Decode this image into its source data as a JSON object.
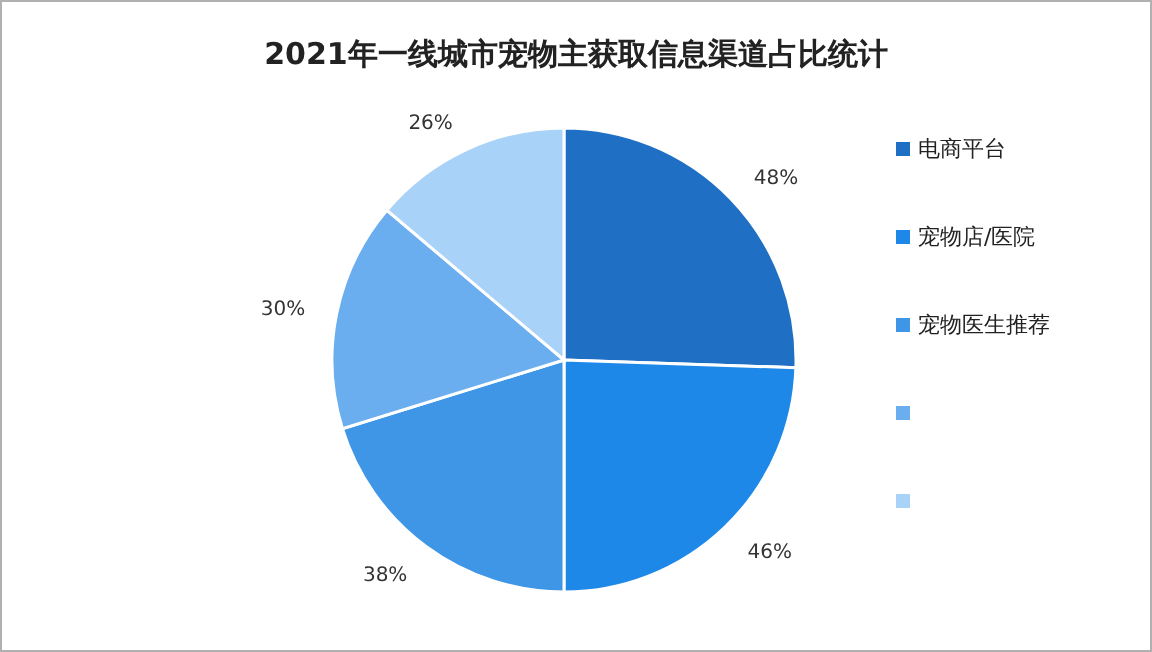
{
  "chart_data": {
    "type": "pie",
    "title": "2021年一线城市宠物主获取信息渠道占比统计",
    "categories": [
      "电商平台",
      "宠物店/医院",
      "宠物医生推荐",
      null,
      null
    ],
    "values": [
      48,
      46,
      38,
      30,
      26
    ],
    "value_labels": [
      "48%",
      "46%",
      "38%",
      "30%",
      "26%"
    ],
    "colors": [
      "#1f6fc4",
      "#1e88e8",
      "#3f95e6",
      "#6aaef0",
      "#a8d2f8"
    ],
    "legend": "right"
  }
}
